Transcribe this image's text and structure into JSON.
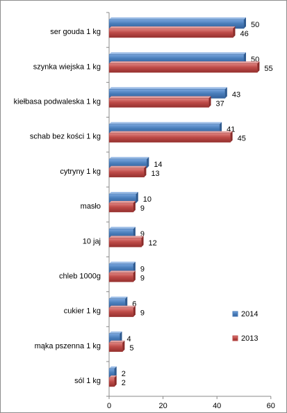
{
  "chart_data": {
    "type": "bar",
    "orientation": "horizontal",
    "categories": [
      "ser gouda 1 kg",
      "szynka wiejska 1 kg",
      "kiełbasa podwaleska 1 kg",
      "schab bez kości 1 kg",
      "cytryny 1 kg",
      "masło",
      "10 jaj",
      "chleb 1000g",
      "cukier 1 kg",
      "mąka pszenna 1 kg",
      "sól 1 kg"
    ],
    "series": [
      {
        "name": "2014",
        "color": "#4a7ebb",
        "values": [
          50,
          50,
          43,
          41,
          14,
          10,
          9,
          9,
          6,
          4,
          2
        ]
      },
      {
        "name": "2013",
        "color": "#be4b48",
        "values": [
          46,
          55,
          37,
          45,
          13,
          9,
          12,
          9,
          9,
          5,
          2
        ]
      }
    ],
    "xlim": [
      0,
      60
    ],
    "xticks": [
      0,
      20,
      40,
      60
    ],
    "legend_position": "bottom-right",
    "grid": false,
    "title": "",
    "xlabel": "",
    "ylabel": ""
  }
}
